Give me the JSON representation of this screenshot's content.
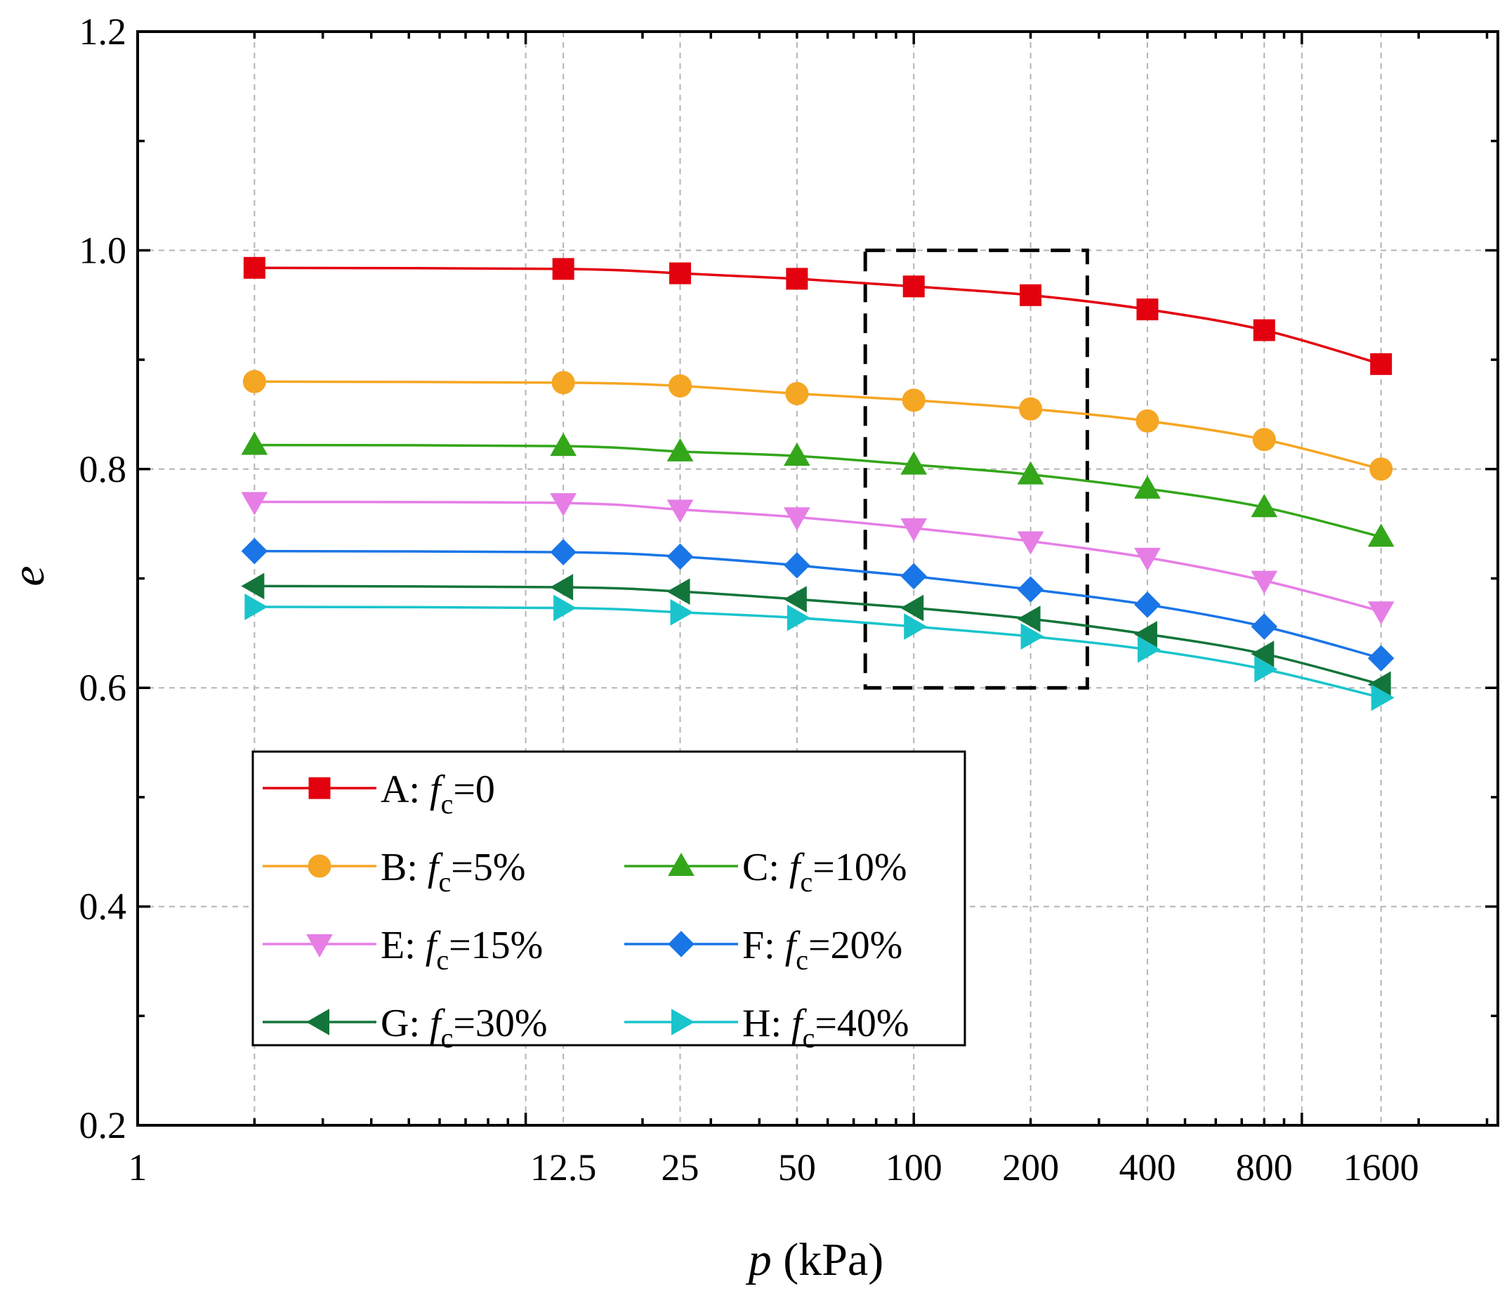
{
  "chart_data": {
    "type": "line",
    "title": "",
    "xlabel": {
      "var": "p",
      "unit": " (kPa)"
    },
    "ylabel": "e",
    "xscale": "log",
    "xlim": [
      1,
      3200
    ],
    "ylim": [
      0.2,
      1.2
    ],
    "grid": true,
    "x_ticks": [
      {
        "value": 1,
        "label": "1"
      },
      {
        "value": 12.5,
        "label": "12.5"
      },
      {
        "value": 25,
        "label": "25"
      },
      {
        "value": 50,
        "label": "50"
      },
      {
        "value": 100,
        "label": "100"
      },
      {
        "value": 200,
        "label": "200"
      },
      {
        "value": 400,
        "label": "400"
      },
      {
        "value": 800,
        "label": "800"
      },
      {
        "value": 1600,
        "label": "1600"
      }
    ],
    "y_ticks": [
      {
        "value": 0.2,
        "label": "0.2"
      },
      {
        "value": 0.4,
        "label": "0.4"
      },
      {
        "value": 0.6,
        "label": "0.6"
      },
      {
        "value": 0.8,
        "label": "0.8"
      },
      {
        "value": 1.0,
        "label": "1.0"
      },
      {
        "value": 1.2,
        "label": "1.2"
      }
    ],
    "x": [
      2,
      12.5,
      25,
      50,
      100,
      200,
      400,
      800,
      1600
    ],
    "series": [
      {
        "name": "A",
        "fc": "0",
        "color": "#e3000f",
        "marker": "square",
        "values": [
          0.984,
          0.983,
          0.979,
          0.974,
          0.967,
          0.959,
          0.946,
          0.927,
          0.896
        ]
      },
      {
        "name": "B",
        "fc": "5%",
        "color": "#f5a623",
        "marker": "circle",
        "values": [
          0.88,
          0.879,
          0.876,
          0.869,
          0.863,
          0.855,
          0.844,
          0.827,
          0.8
        ]
      },
      {
        "name": "C",
        "fc": "10%",
        "color": "#33a61a",
        "marker": "triangle-up",
        "values": [
          0.822,
          0.821,
          0.816,
          0.812,
          0.804,
          0.795,
          0.782,
          0.765,
          0.738
        ]
      },
      {
        "name": "E",
        "fc": "15%",
        "color": "#e67ee6",
        "marker": "triangle-down",
        "values": [
          0.77,
          0.769,
          0.763,
          0.756,
          0.746,
          0.734,
          0.719,
          0.698,
          0.67
        ]
      },
      {
        "name": "F",
        "fc": "20%",
        "color": "#1a75e6",
        "marker": "diamond",
        "values": [
          0.725,
          0.724,
          0.72,
          0.712,
          0.702,
          0.69,
          0.676,
          0.656,
          0.627
        ]
      },
      {
        "name": "G",
        "fc": "30%",
        "color": "#13753a",
        "marker": "triangle-left",
        "values": [
          0.693,
          0.692,
          0.688,
          0.681,
          0.673,
          0.663,
          0.649,
          0.631,
          0.603
        ]
      },
      {
        "name": "H",
        "fc": "40%",
        "color": "#1ac4cc",
        "marker": "triangle-right",
        "values": [
          0.674,
          0.673,
          0.669,
          0.664,
          0.656,
          0.647,
          0.635,
          0.617,
          0.591
        ]
      }
    ],
    "annotations": [
      {
        "type": "dashed-rectangle",
        "x_range": [
          75,
          280
        ],
        "y_range": [
          0.6,
          1.0
        ]
      }
    ],
    "legend": {
      "placement": "lower-left",
      "layout": [
        [
          "A"
        ],
        [
          "B",
          "C"
        ],
        [
          "E",
          "F"
        ],
        [
          "G",
          "H"
        ]
      ],
      "italic_var": "f",
      "subscript": "c",
      "entries": [
        {
          "series": "A",
          "prefix": "A: ",
          "value": "=0"
        },
        {
          "series": "B",
          "prefix": "B: ",
          "value": "=5%"
        },
        {
          "series": "C",
          "prefix": "C: ",
          "value": "=10%"
        },
        {
          "series": "E",
          "prefix": "E: ",
          "value": "=15%"
        },
        {
          "series": "F",
          "prefix": "F: ",
          "value": "=20%"
        },
        {
          "series": "G",
          "prefix": "G: ",
          "value": "=30%"
        },
        {
          "series": "H",
          "prefix": "H: ",
          "value": "=40%"
        }
      ]
    }
  }
}
